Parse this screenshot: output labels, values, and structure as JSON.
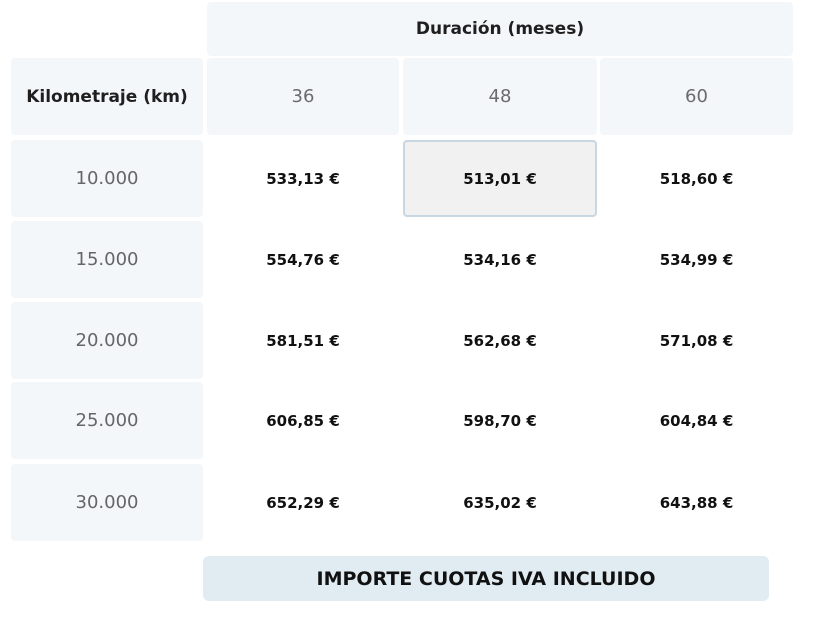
{
  "table": {
    "duration_title": "Duración (meses)",
    "km_title": "Kilometraje (km)",
    "durations": [
      "36",
      "48",
      "60"
    ],
    "rows": [
      {
        "km": "10.000",
        "prices": [
          "533,13 €",
          "513,01 €",
          "518,60 €"
        ]
      },
      {
        "km": "15.000",
        "prices": [
          "554,76 €",
          "534,16 €",
          "534,99 €"
        ]
      },
      {
        "km": "20.000",
        "prices": [
          "581,51 €",
          "562,68 €",
          "571,08 €"
        ]
      },
      {
        "km": "25.000",
        "prices": [
          "606,85 €",
          "598,70 €",
          "604,84 €"
        ]
      },
      {
        "km": "30.000",
        "prices": [
          "652,29 €",
          "635,02 €",
          "643,88 €"
        ]
      }
    ],
    "selected": {
      "row": 0,
      "col": 1
    }
  },
  "footer": {
    "note": "IMPORTE CUOTAS IVA INCLUIDO"
  }
}
